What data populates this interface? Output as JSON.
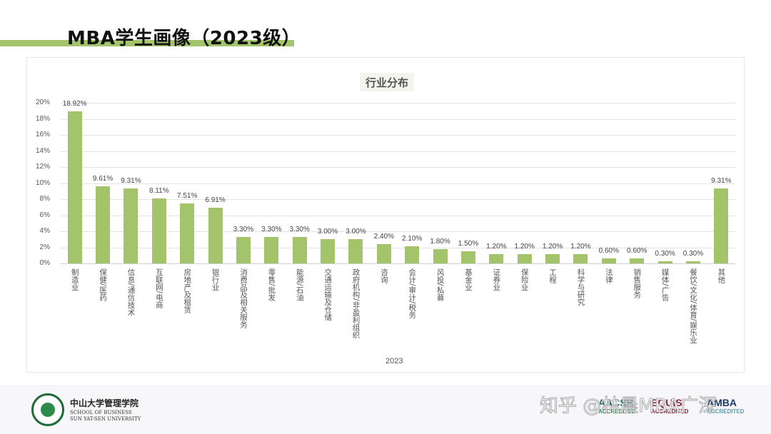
{
  "page": {
    "title": "MBA学生画像（2023级）"
  },
  "footer": {
    "school_cn": "中山大学管理学院",
    "school_en_line1": "SCHOOL OF BUSINESS",
    "school_en_line2": "SUN YAT-SEN UNIVERSITY",
    "accreditations": [
      {
        "name": "AACSB",
        "sub": "ACCREDITED",
        "color": "#1f6b6b"
      },
      {
        "name": "EQUIS",
        "sub": "ACCREDITED",
        "color": "#8a2040"
      },
      {
        "name": "AMBA",
        "sub": "ACCREDITED",
        "color": "#1a3a6a"
      }
    ],
    "watermark": "知乎 @林晨MBA广深"
  },
  "chart_data": {
    "type": "bar",
    "title": "行业分布",
    "xlabel": "2023",
    "ylabel": "",
    "ylim": [
      0,
      20
    ],
    "yticks": [
      "0%",
      "2%",
      "4%",
      "6%",
      "8%",
      "10%",
      "12%",
      "14%",
      "16%",
      "18%",
      "20%"
    ],
    "grid": true,
    "legend": null,
    "bar_color": "#a3c46a",
    "categories": [
      "制造业",
      "保健/医药",
      "信息/通信技术",
      "互联网/电商",
      "房地产及租赁",
      "银行业",
      "消费品及相关服务",
      "零售/批发",
      "能源/石油",
      "交通运输及仓储",
      "政府机构/非盈利组织",
      "咨询",
      "会计/审计/税务",
      "风投/私募",
      "基金业",
      "证券业",
      "保险业",
      "工程",
      "科学与研究",
      "法律",
      "销售服务",
      "媒体/广告",
      "餐饮/文化/体育/娱乐业",
      "其他"
    ],
    "values": [
      18.92,
      9.61,
      9.31,
      8.11,
      7.51,
      6.91,
      3.3,
      3.3,
      3.3,
      3.0,
      3.0,
      2.4,
      2.1,
      1.8,
      1.5,
      1.2,
      1.2,
      1.2,
      1.2,
      0.6,
      0.6,
      0.3,
      0.3,
      9.31
    ],
    "labels": [
      "18.92%",
      "9.61%",
      "9.31%",
      "8.11%",
      "7.51%",
      "6.91%",
      "3.30%",
      "3.30%",
      "3.30%",
      "3.00%",
      "3.00%",
      "2.40%",
      "2.10%",
      "1.80%",
      "1.50%",
      "1.20%",
      "1.20%",
      "1.20%",
      "1.20%",
      "0.60%",
      "0.60%",
      "0.30%",
      "0.30%",
      "9.31%"
    ]
  }
}
